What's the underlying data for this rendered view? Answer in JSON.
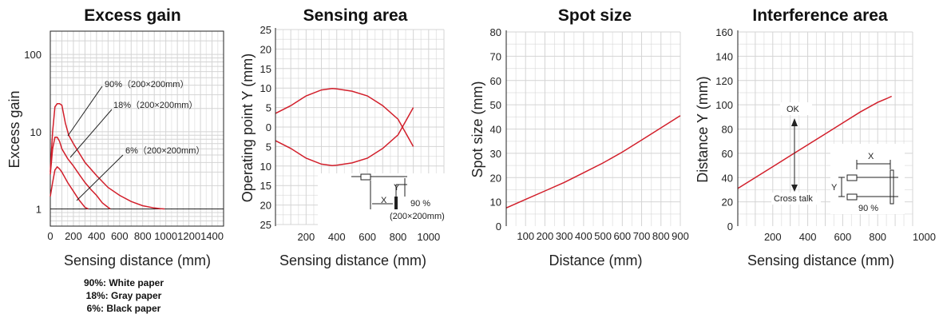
{
  "charts": [
    {
      "id": "excess",
      "type": "line",
      "title": "Excess gain",
      "xlabel": "Sensing distance (mm)",
      "ylabel": "Excess gain",
      "x_ticks": [
        "0",
        "200",
        "400",
        "600",
        "800",
        "1000",
        "1200",
        "1400"
      ],
      "y_ticks": [
        "1",
        "10",
        "100"
      ],
      "annotations": [
        "90%（200×200mm）",
        "18%（200×200mm）",
        "6%（200×200mm）"
      ],
      "note_lines": [
        "90%: White paper",
        "18%: Gray paper",
        "6%: Black paper"
      ]
    },
    {
      "id": "sensing",
      "type": "line",
      "title": "Sensing area",
      "xlabel": "Sensing distance (mm)",
      "ylabel": "Operating point Y (mm)",
      "x_ticks": [
        "200",
        "400",
        "600",
        "800",
        "1000"
      ],
      "y_ticks": [
        "25",
        "20",
        "15",
        "10",
        "5",
        "0",
        "5",
        "10",
        "15",
        "20",
        "25"
      ],
      "annotations": [
        "Y",
        "X",
        "90 %",
        "(200×200mm)"
      ]
    },
    {
      "id": "spot",
      "type": "line",
      "title": "Spot size",
      "xlabel": "Distance (mm)",
      "ylabel": "Spot size (mm)",
      "x_ticks": [
        "100",
        "200",
        "300",
        "400",
        "500",
        "600",
        "700",
        "800",
        "900"
      ],
      "y_ticks": [
        "0",
        "10",
        "20",
        "30",
        "40",
        "50",
        "60",
        "70",
        "80"
      ]
    },
    {
      "id": "interf",
      "type": "line",
      "title": "Interference area",
      "xlabel": "Sensing distance (mm)",
      "ylabel": "Distance Y (mm)",
      "x_ticks": [
        "200",
        "400",
        "600",
        "800",
        "1000"
      ],
      "y_ticks": [
        "0",
        "20",
        "40",
        "60",
        "80",
        "100",
        "120",
        "140",
        "160"
      ],
      "annotations": [
        "OK",
        "Cross talk",
        "X",
        "Y",
        "90 %"
      ]
    }
  ],
  "chart_data": [
    {
      "type": "line",
      "title": "Excess gain",
      "xlabel": "Sensing distance (mm)",
      "ylabel": "Excess gain",
      "y_scale": "log",
      "xlim": [
        0,
        1500
      ],
      "ylim": [
        0.6,
        200
      ],
      "series": [
        {
          "x": [
            0,
            20,
            40,
            60,
            80,
            100,
            130,
            160,
            200,
            300,
            400,
            500,
            600,
            700,
            800,
            900,
            950,
            990
          ],
          "y": [
            3,
            10,
            21,
            23,
            23,
            22,
            13,
            9,
            7,
            4,
            2.7,
            1.9,
            1.5,
            1.25,
            1.1,
            1.03,
            1.01,
            1.0
          ]
        },
        {
          "x": [
            0,
            20,
            40,
            60,
            80,
            100,
            150,
            200,
            250,
            300,
            350,
            400,
            450,
            500,
            520
          ],
          "y": [
            2.8,
            6,
            8.5,
            8.5,
            7.5,
            6,
            4.5,
            3.6,
            2.8,
            2.2,
            1.8,
            1.5,
            1.2,
            1.05,
            1.0
          ]
        },
        {
          "x": [
            0,
            20,
            40,
            60,
            80,
            100,
            150,
            200,
            250,
            300,
            330
          ],
          "y": [
            1.45,
            2.2,
            3.2,
            3.5,
            3.3,
            3,
            2.2,
            1.7,
            1.3,
            1.05,
            1.0
          ]
        }
      ]
    },
    {
      "type": "line",
      "title": "Sensing area",
      "xlabel": "Sensing distance (mm)",
      "ylabel": "Operating point Y (mm)",
      "xlim": [
        0,
        1100
      ],
      "ylim": [
        -25,
        25
      ],
      "series": [
        {
          "x": [
            0,
            100,
            200,
            300,
            370,
            400,
            500,
            600,
            700,
            800,
            900
          ],
          "y": [
            3.5,
            5.5,
            8,
            9.5,
            9.9,
            9.8,
            9.2,
            8,
            5.5,
            2,
            -5
          ]
        },
        {
          "x": [
            0,
            100,
            200,
            300,
            370,
            400,
            500,
            600,
            700,
            800,
            900
          ],
          "y": [
            -3.5,
            -5.5,
            -8,
            -9.5,
            -9.9,
            -9.8,
            -9.2,
            -8,
            -5.5,
            -2,
            5
          ]
        }
      ]
    },
    {
      "type": "line",
      "title": "Spot size",
      "xlabel": "Distance (mm)",
      "ylabel": "Spot size (mm)",
      "xlim": [
        0,
        900
      ],
      "ylim": [
        0,
        80
      ],
      "series": [
        {
          "x": [
            0,
            100,
            200,
            300,
            400,
            500,
            600,
            700,
            800,
            900
          ],
          "y": [
            7.5,
            11,
            14.5,
            18,
            22,
            26,
            30.5,
            35.5,
            40.5,
            45.5
          ]
        }
      ]
    },
    {
      "type": "line",
      "title": "Interference area",
      "xlabel": "Sensing distance (mm)",
      "ylabel": "Distance Y (mm)",
      "xlim": [
        0,
        1000
      ],
      "ylim": [
        0,
        160
      ],
      "series": [
        {
          "x": [
            0,
            100,
            200,
            300,
            400,
            500,
            600,
            700,
            800,
            850,
            880
          ],
          "y": [
            31,
            40,
            49,
            58,
            67,
            76,
            85,
            94,
            102,
            105,
            107
          ]
        }
      ]
    }
  ]
}
